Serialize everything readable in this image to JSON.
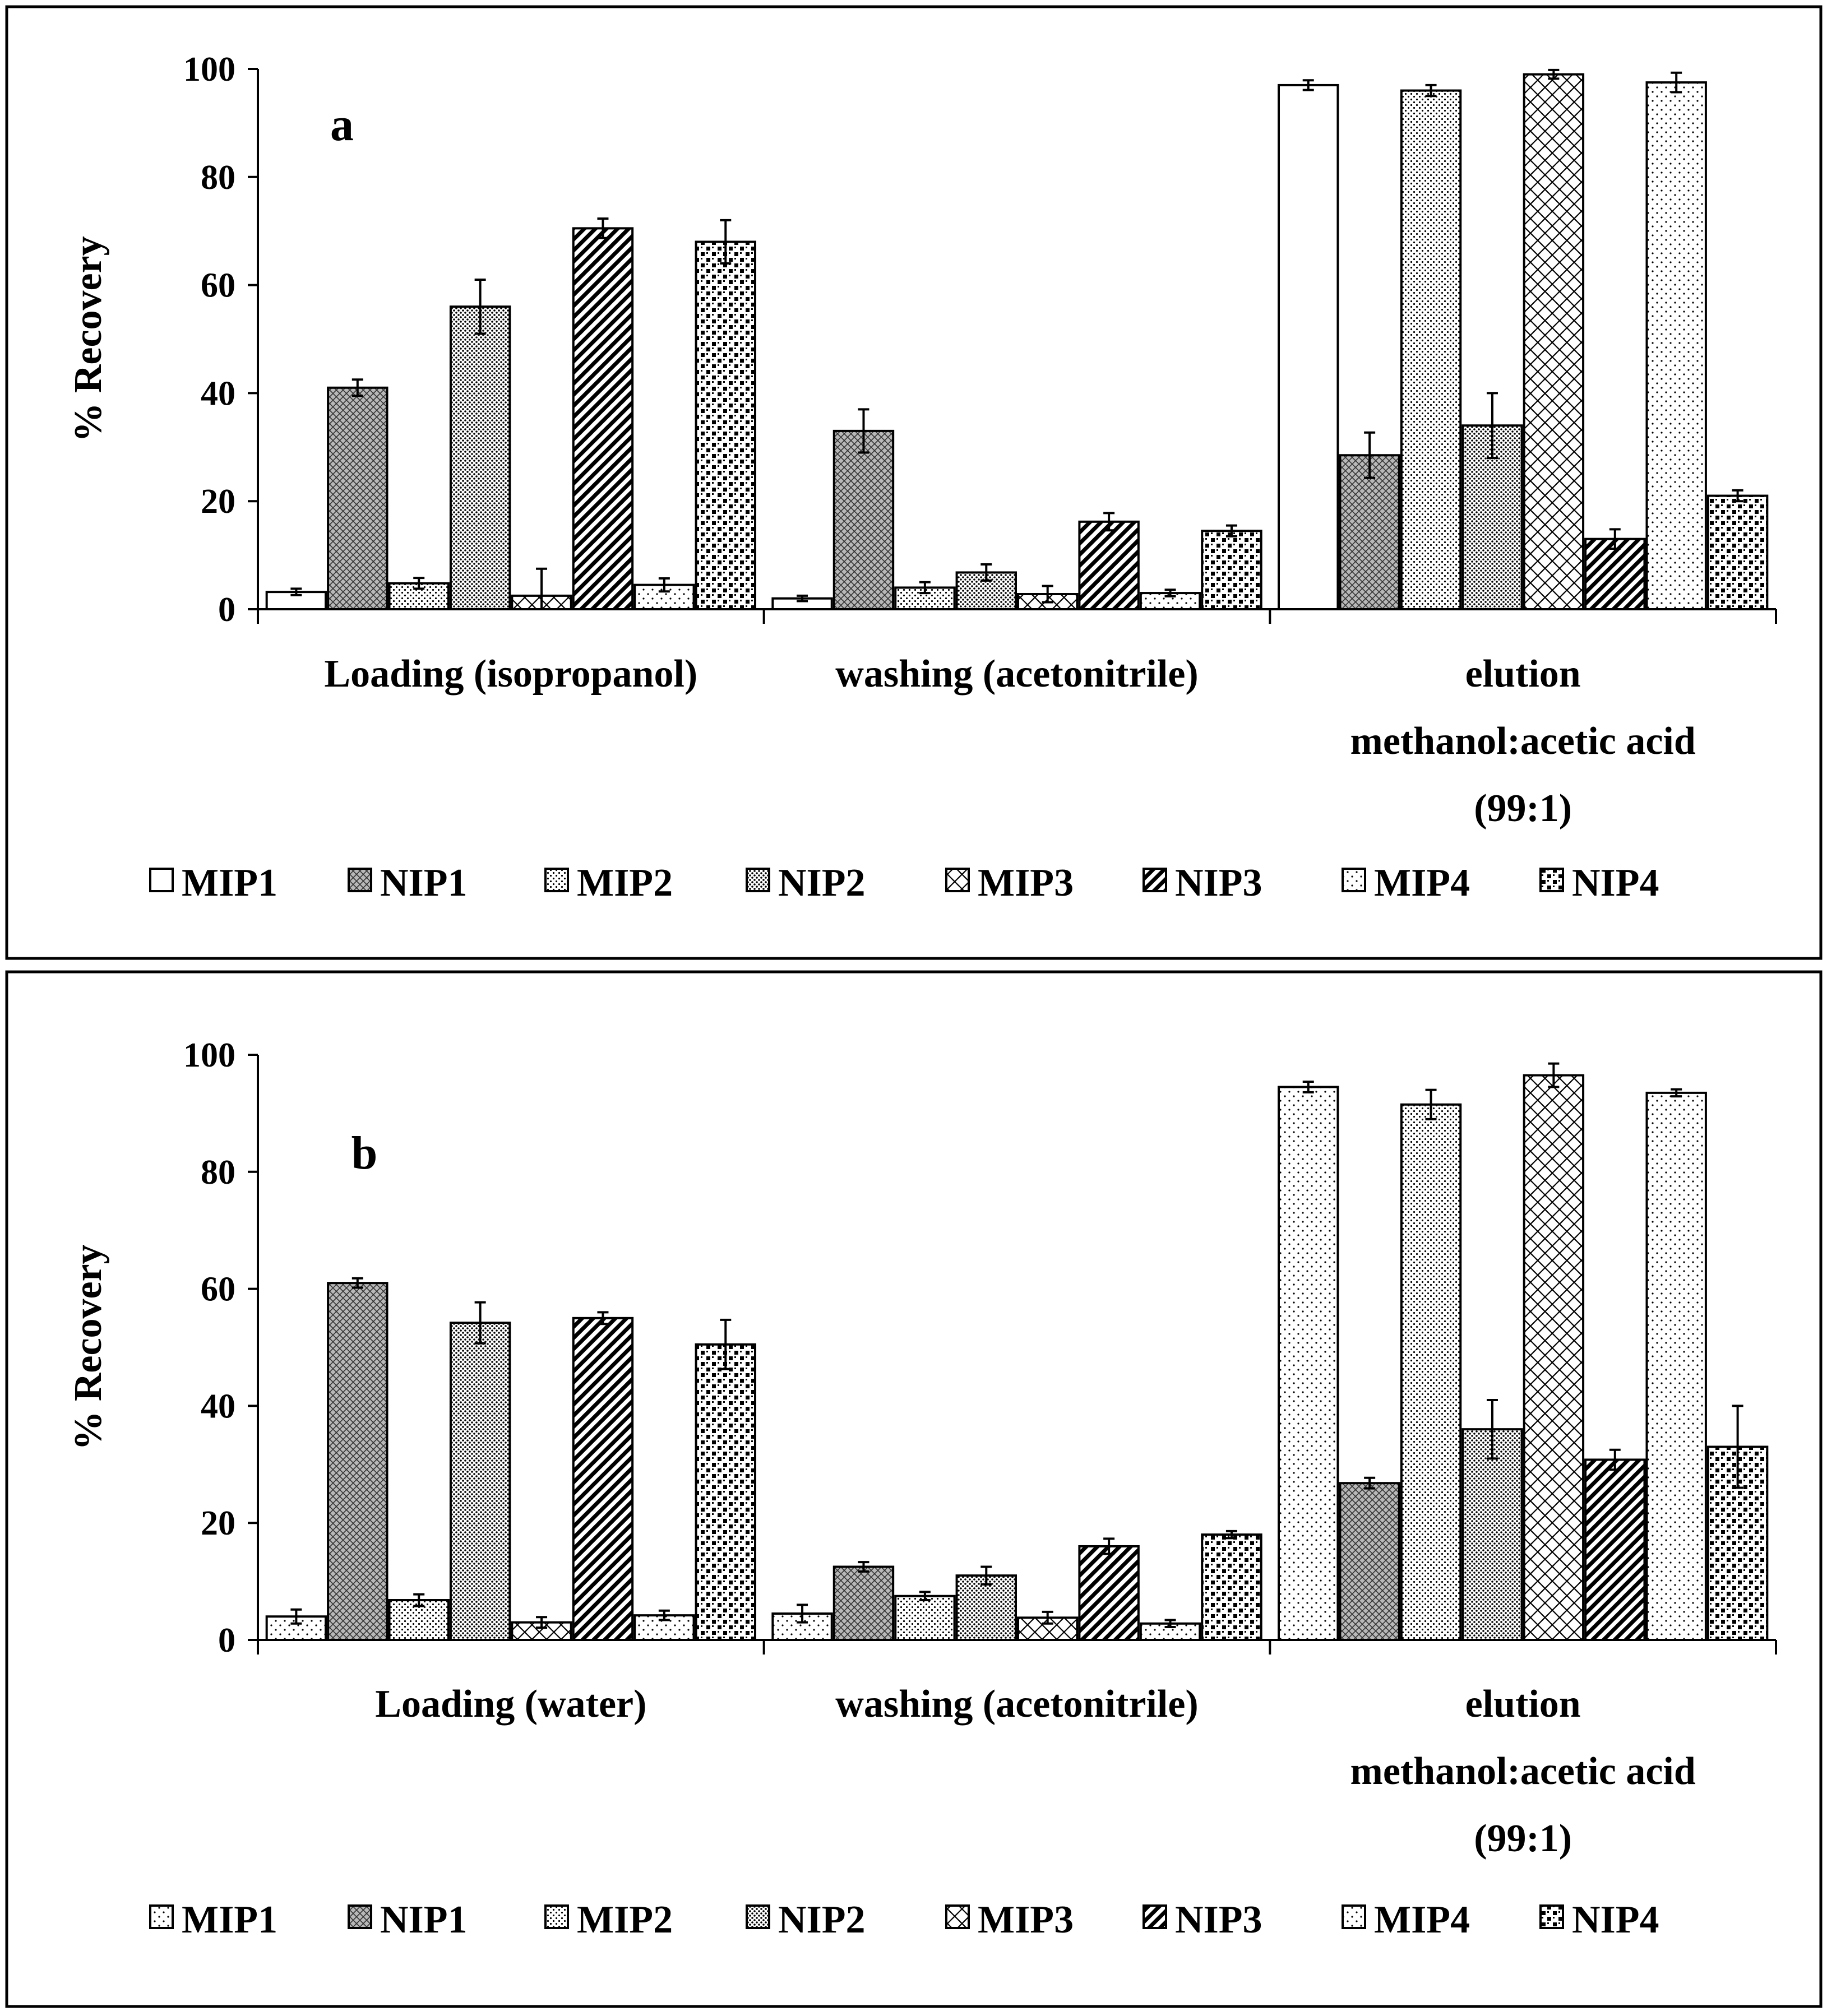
{
  "chart_data": [
    {
      "type": "bar",
      "panel_label": "a",
      "ylabel": "% Recovery",
      "ylim": [
        0,
        100
      ],
      "yticks": [
        "0",
        "20",
        "40",
        "60",
        "80",
        "100"
      ],
      "categories": [
        "Loading (isopropanol)",
        "washing (acetonitrile)",
        "elution methanol:acetic acid (99:1)"
      ],
      "category_lines": [
        [
          "Loading (isopropanol)"
        ],
        [
          "washing (acetonitrile)"
        ],
        [
          "elution",
          "methanol:acetic acid",
          "(99:1)"
        ]
      ],
      "legend_position": "bottom",
      "series": [
        {
          "name": "MIP1",
          "pattern": "blank",
          "values": [
            3.2,
            2.0,
            97.0
          ],
          "errors": [
            0.6,
            0.5,
            0.9
          ]
        },
        {
          "name": "NIP1",
          "pattern": "cross",
          "values": [
            41.0,
            33.0,
            28.5
          ],
          "errors": [
            1.5,
            4.0,
            4.2
          ]
        },
        {
          "name": "MIP2",
          "pattern": "fine",
          "values": [
            4.8,
            4.0,
            96.0
          ],
          "errors": [
            1.0,
            1.0,
            1.0
          ]
        },
        {
          "name": "NIP2",
          "pattern": "dense",
          "values": [
            56.0,
            6.8,
            34.0
          ],
          "errors": [
            5.0,
            1.5,
            6.0
          ]
        },
        {
          "name": "MIP3",
          "pattern": "diamond",
          "values": [
            2.5,
            2.8,
            99.0
          ],
          "errors": [
            5.0,
            1.5,
            0.8
          ]
        },
        {
          "name": "NIP3",
          "pattern": "hatch",
          "values": [
            70.5,
            16.2,
            13.0
          ],
          "errors": [
            1.8,
            1.6,
            1.8
          ]
        },
        {
          "name": "MIP4",
          "pattern": "sparse",
          "values": [
            4.5,
            3.0,
            97.5
          ],
          "errors": [
            1.2,
            0.6,
            1.8
          ]
        },
        {
          "name": "NIP4",
          "pattern": "checker",
          "values": [
            68.0,
            14.5,
            21.0
          ],
          "errors": [
            4.0,
            1.0,
            1.0
          ]
        }
      ]
    },
    {
      "type": "bar",
      "panel_label": "b",
      "ylabel": "% Recovery",
      "ylim": [
        0,
        100
      ],
      "yticks": [
        "0",
        "20",
        "40",
        "60",
        "80",
        "100"
      ],
      "categories": [
        "Loading (water)",
        "washing (acetonitrile)",
        "elution methanol:acetic acid (99:1)"
      ],
      "category_lines": [
        [
          "Loading (water)"
        ],
        [
          "washing  (acetonitrile)"
        ],
        [
          "elution",
          "methanol:acetic acid",
          "(99:1)"
        ]
      ],
      "legend_position": "bottom",
      "series": [
        {
          "name": "MIP1",
          "pattern": "sparse",
          "values": [
            4.0,
            4.5,
            94.5
          ],
          "errors": [
            1.2,
            1.5,
            0.9
          ]
        },
        {
          "name": "NIP1",
          "pattern": "cross",
          "values": [
            61.0,
            12.5,
            26.8
          ],
          "errors": [
            0.8,
            0.8,
            0.9
          ]
        },
        {
          "name": "MIP2",
          "pattern": "fine",
          "values": [
            6.8,
            7.5,
            91.5
          ],
          "errors": [
            1.0,
            0.7,
            2.5
          ]
        },
        {
          "name": "NIP2",
          "pattern": "dense",
          "values": [
            54.2,
            11.0,
            36.0
          ],
          "errors": [
            3.5,
            1.5,
            5.0
          ]
        },
        {
          "name": "MIP3",
          "pattern": "diamond",
          "values": [
            3.0,
            3.8,
            96.5
          ],
          "errors": [
            0.9,
            1.0,
            2.0
          ]
        },
        {
          "name": "NIP3",
          "pattern": "hatch",
          "values": [
            55.0,
            16.0,
            30.8
          ],
          "errors": [
            1.0,
            1.3,
            1.7
          ]
        },
        {
          "name": "MIP4",
          "pattern": "sparse",
          "values": [
            4.2,
            2.8,
            93.5
          ],
          "errors": [
            0.8,
            0.6,
            0.6
          ]
        },
        {
          "name": "NIP4",
          "pattern": "checker",
          "values": [
            50.5,
            18.0,
            33.0
          ],
          "errors": [
            4.2,
            0.6,
            7.0
          ]
        }
      ]
    }
  ]
}
